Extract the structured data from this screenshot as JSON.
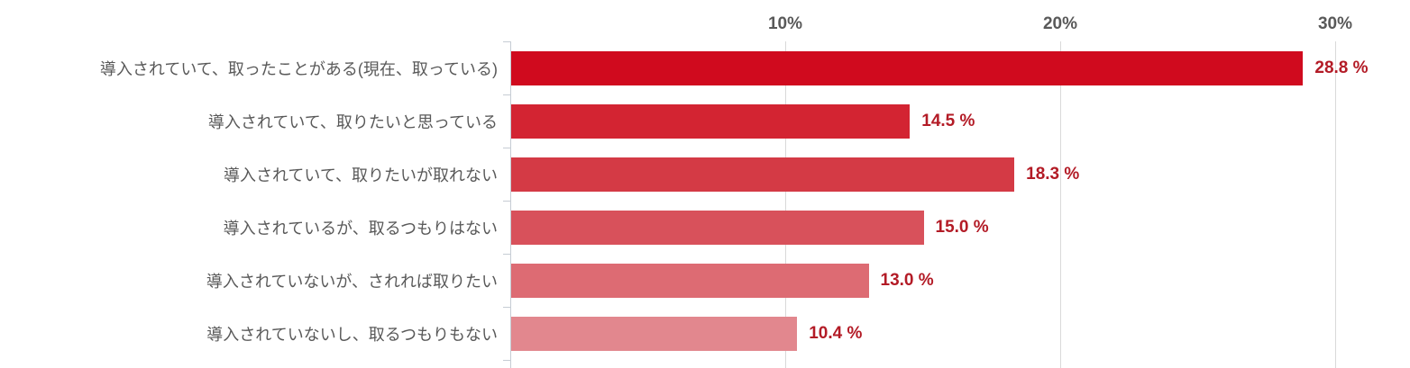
{
  "chart_data": {
    "type": "bar",
    "orientation": "horizontal",
    "title": "",
    "xlabel": "",
    "ylabel": "",
    "categories": [
      "導入されていて、取ったことがある(現在、取っている)",
      "導入されていて、取りたいと思っている",
      "導入されていて、取りたいが取れない",
      "導入されているが、取るつもりはない",
      "導入されていないが、されれば取りたい",
      "導入されていないし、取るつもりもない"
    ],
    "values": [
      28.8,
      14.5,
      18.3,
      15.0,
      13.0,
      10.4
    ],
    "value_labels": [
      "28.8 %",
      "14.5 %",
      "18.3 %",
      "15.0 %",
      "13.0 %",
      "10.4 %"
    ],
    "axis": {
      "tick_labels": [
        "10%",
        "20%",
        "30%"
      ],
      "tick_values": [
        10,
        20,
        30
      ],
      "xlim": [
        0,
        30
      ],
      "position": "top"
    },
    "grid": true,
    "legend": false,
    "bar_colors": [
      "#d00a1e",
      "#d32432",
      "#d43a45",
      "#d8515b",
      "#dd6b73",
      "#e2878e"
    ]
  },
  "colors": {
    "value_label_text": "#b31b26",
    "axis_text": "#595959",
    "category_text": "#595959",
    "gridline": "#d9d9d9",
    "axis_line": "#c6ccd4"
  }
}
